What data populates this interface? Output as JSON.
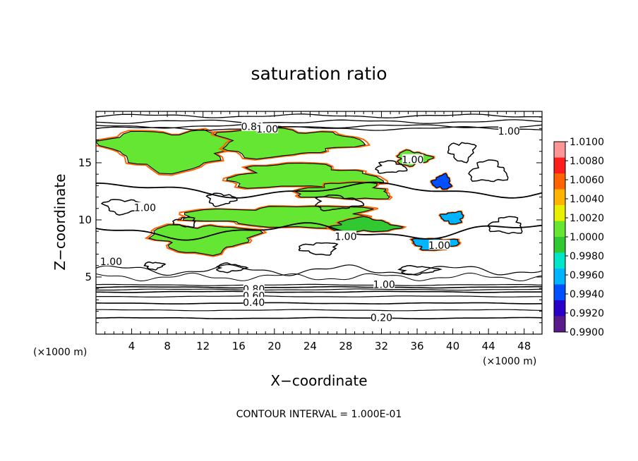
{
  "chart_data": {
    "type": "heatmap",
    "title": "saturation ratio",
    "xlabel": "X−coordinate",
    "ylabel": "Z−coordinate",
    "x_unit_left": "(×1000 m)",
    "x_unit_right": "(×1000 m)",
    "xlim": [
      0,
      50
    ],
    "ylim": [
      0,
      19.5
    ],
    "x_ticks": [
      4,
      8,
      12,
      16,
      20,
      24,
      28,
      32,
      36,
      40,
      44,
      48
    ],
    "y_ticks": [
      5,
      10,
      15
    ],
    "footer": "CONTOUR INTERVAL = 1.000E-01",
    "colorbar": {
      "labels": [
        "1.0100",
        "1.0080",
        "1.0060",
        "1.0040",
        "1.0020",
        "1.0000",
        "0.9980",
        "0.9960",
        "0.9940",
        "0.9920",
        "0.9900"
      ],
      "range": [
        0.99,
        1.01
      ],
      "colors": [
        "#5a1a8c",
        "#2a00c8",
        "#0050ff",
        "#00b4ff",
        "#00e6c8",
        "#32c832",
        "#64e632",
        "#e6f000",
        "#ffb400",
        "#ff6400",
        "#ff1e1e",
        "#ff9696"
      ]
    },
    "contour_labels": [
      {
        "text": "0.80",
        "x": 17.5,
        "y": 18.1
      },
      {
        "text": "1.00",
        "x": 19.2,
        "y": 17.9
      },
      {
        "text": "1.00",
        "x": 46.3,
        "y": 17.7
      },
      {
        "text": "1.00",
        "x": 35.5,
        "y": 15.2
      },
      {
        "text": "1.00",
        "x": 5.5,
        "y": 11.0
      },
      {
        "text": "1.00",
        "x": 28.0,
        "y": 8.5
      },
      {
        "text": "1.00",
        "x": 38.5,
        "y": 7.7
      },
      {
        "text": "1.00",
        "x": 1.7,
        "y": 6.3
      },
      {
        "text": "1.00",
        "x": 32.3,
        "y": 4.3
      },
      {
        "text": "0.80",
        "x": 17.7,
        "y": 3.9
      },
      {
        "text": "0.60",
        "x": 17.7,
        "y": 3.3
      },
      {
        "text": "0.40",
        "x": 17.7,
        "y": 2.7
      },
      {
        "text": "0.20",
        "x": 32.0,
        "y": 1.4
      }
    ],
    "moist_regions": [
      {
        "cx": 8.5,
        "cy": 16.2,
        "rx": 7.0,
        "ry": 1.7,
        "v": 1.0005
      },
      {
        "cx": 21.0,
        "cy": 16.8,
        "rx": 7.5,
        "ry": 1.2,
        "v": 1.0008
      },
      {
        "cx": 23.0,
        "cy": 13.8,
        "rx": 8.0,
        "ry": 1.0,
        "v": 1.0003
      },
      {
        "cx": 28.0,
        "cy": 12.5,
        "rx": 5.0,
        "ry": 0.7,
        "v": 1.0004
      },
      {
        "cx": 21.0,
        "cy": 10.3,
        "rx": 10.0,
        "ry": 0.9,
        "v": 1.0006
      },
      {
        "cx": 12.0,
        "cy": 8.4,
        "rx": 5.5,
        "ry": 1.2,
        "v": 1.0002
      },
      {
        "cx": 35.5,
        "cy": 15.4,
        "rx": 1.8,
        "ry": 0.6,
        "v": 1.0001
      },
      {
        "cx": 30.0,
        "cy": 9.5,
        "rx": 3.5,
        "ry": 0.6,
        "v": 0.9985
      },
      {
        "cx": 38.8,
        "cy": 13.3,
        "rx": 1.0,
        "ry": 0.6,
        "v": 0.9935
      },
      {
        "cx": 40.0,
        "cy": 10.2,
        "rx": 1.2,
        "ry": 0.5,
        "v": 0.9955
      },
      {
        "cx": 38.0,
        "cy": 7.9,
        "rx": 2.5,
        "ry": 0.5,
        "v": 0.9965
      }
    ]
  }
}
